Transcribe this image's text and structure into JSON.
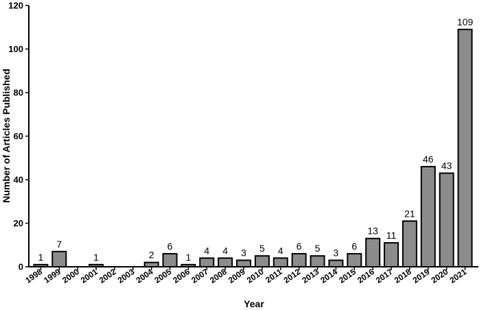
{
  "chart_data": {
    "type": "bar",
    "xlabel": "Year",
    "ylabel": "Number of Articles Published",
    "ylim": [
      0,
      120
    ],
    "yticks": [
      0,
      20,
      40,
      60,
      80,
      100,
      120
    ],
    "grid": false,
    "categories": [
      "1998",
      "1999",
      "2000",
      "2001",
      "2002",
      "2003",
      "2004",
      "2005",
      "2006",
      "2007",
      "2008",
      "2009",
      "2010",
      "2011",
      "2012",
      "2013",
      "2014",
      "2015",
      "2016",
      "2017",
      "2018",
      "2019",
      "2020",
      "2021"
    ],
    "values": [
      1,
      7,
      0,
      1,
      0,
      0,
      2,
      6,
      1,
      4,
      4,
      3,
      5,
      4,
      6,
      5,
      3,
      6,
      13,
      11,
      21,
      46,
      43,
      109
    ],
    "data_labels": [
      "1",
      "7",
      "",
      "1",
      "",
      "",
      "2",
      "6",
      "1",
      "4",
      "4",
      "3",
      "5",
      "4",
      "6",
      "5",
      "3",
      "6",
      "13",
      "11",
      "21",
      "46",
      "43",
      "109"
    ],
    "colors": {
      "bar_fill": "#8c8c8c",
      "bar_stroke": "#000000"
    }
  }
}
